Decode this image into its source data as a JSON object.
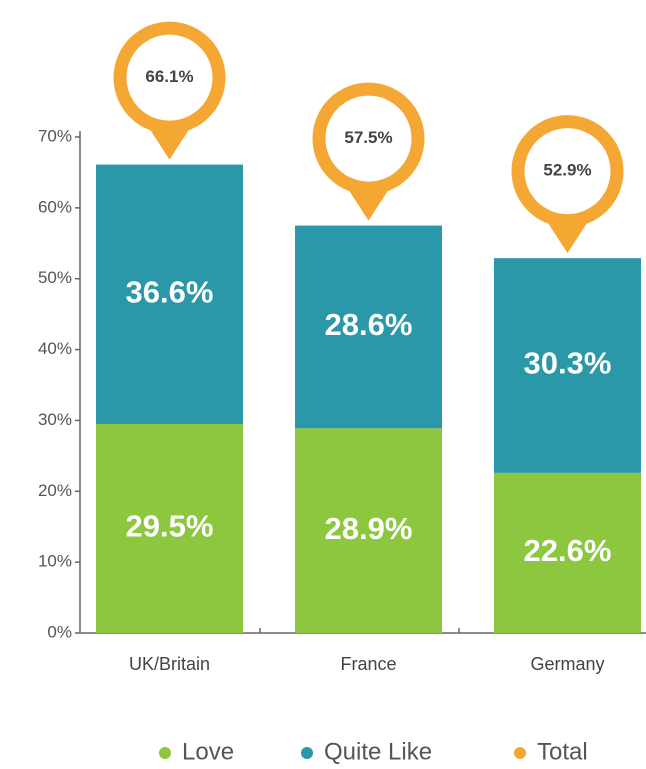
{
  "chart_data": {
    "type": "bar",
    "categories": [
      "UK/Britain",
      "France",
      "Germany"
    ],
    "series": [
      {
        "name": "Love",
        "color": "#8dc63f",
        "values": [
          29.5,
          28.9,
          22.6
        ],
        "value_labels": [
          "29.5%",
          "28.9%",
          "22.6%"
        ]
      },
      {
        "name": "Quite Like",
        "color": "#2a98a8",
        "values": [
          36.6,
          28.6,
          30.3
        ],
        "value_labels": [
          "36.6%",
          "28.6%",
          "30.3%"
        ]
      },
      {
        "name": "Total",
        "type": "marker",
        "color": "#f5a733",
        "values": [
          66.1,
          57.5,
          52.9
        ],
        "value_labels": [
          "66.1%",
          "57.5%",
          "52.9%"
        ]
      }
    ],
    "ylim": [
      0,
      70
    ],
    "yticks": [
      {
        "value": 0,
        "label": "0%"
      },
      {
        "value": 10,
        "label": "10%"
      },
      {
        "value": 20,
        "label": "20%"
      },
      {
        "value": 30,
        "label": "30%"
      },
      {
        "value": 40,
        "label": "40%"
      },
      {
        "value": 50,
        "label": "50%"
      },
      {
        "value": 60,
        "label": "60%"
      },
      {
        "value": 70,
        "label": "70%"
      }
    ],
    "stacked": true,
    "grid": false,
    "legend": "bottom"
  }
}
